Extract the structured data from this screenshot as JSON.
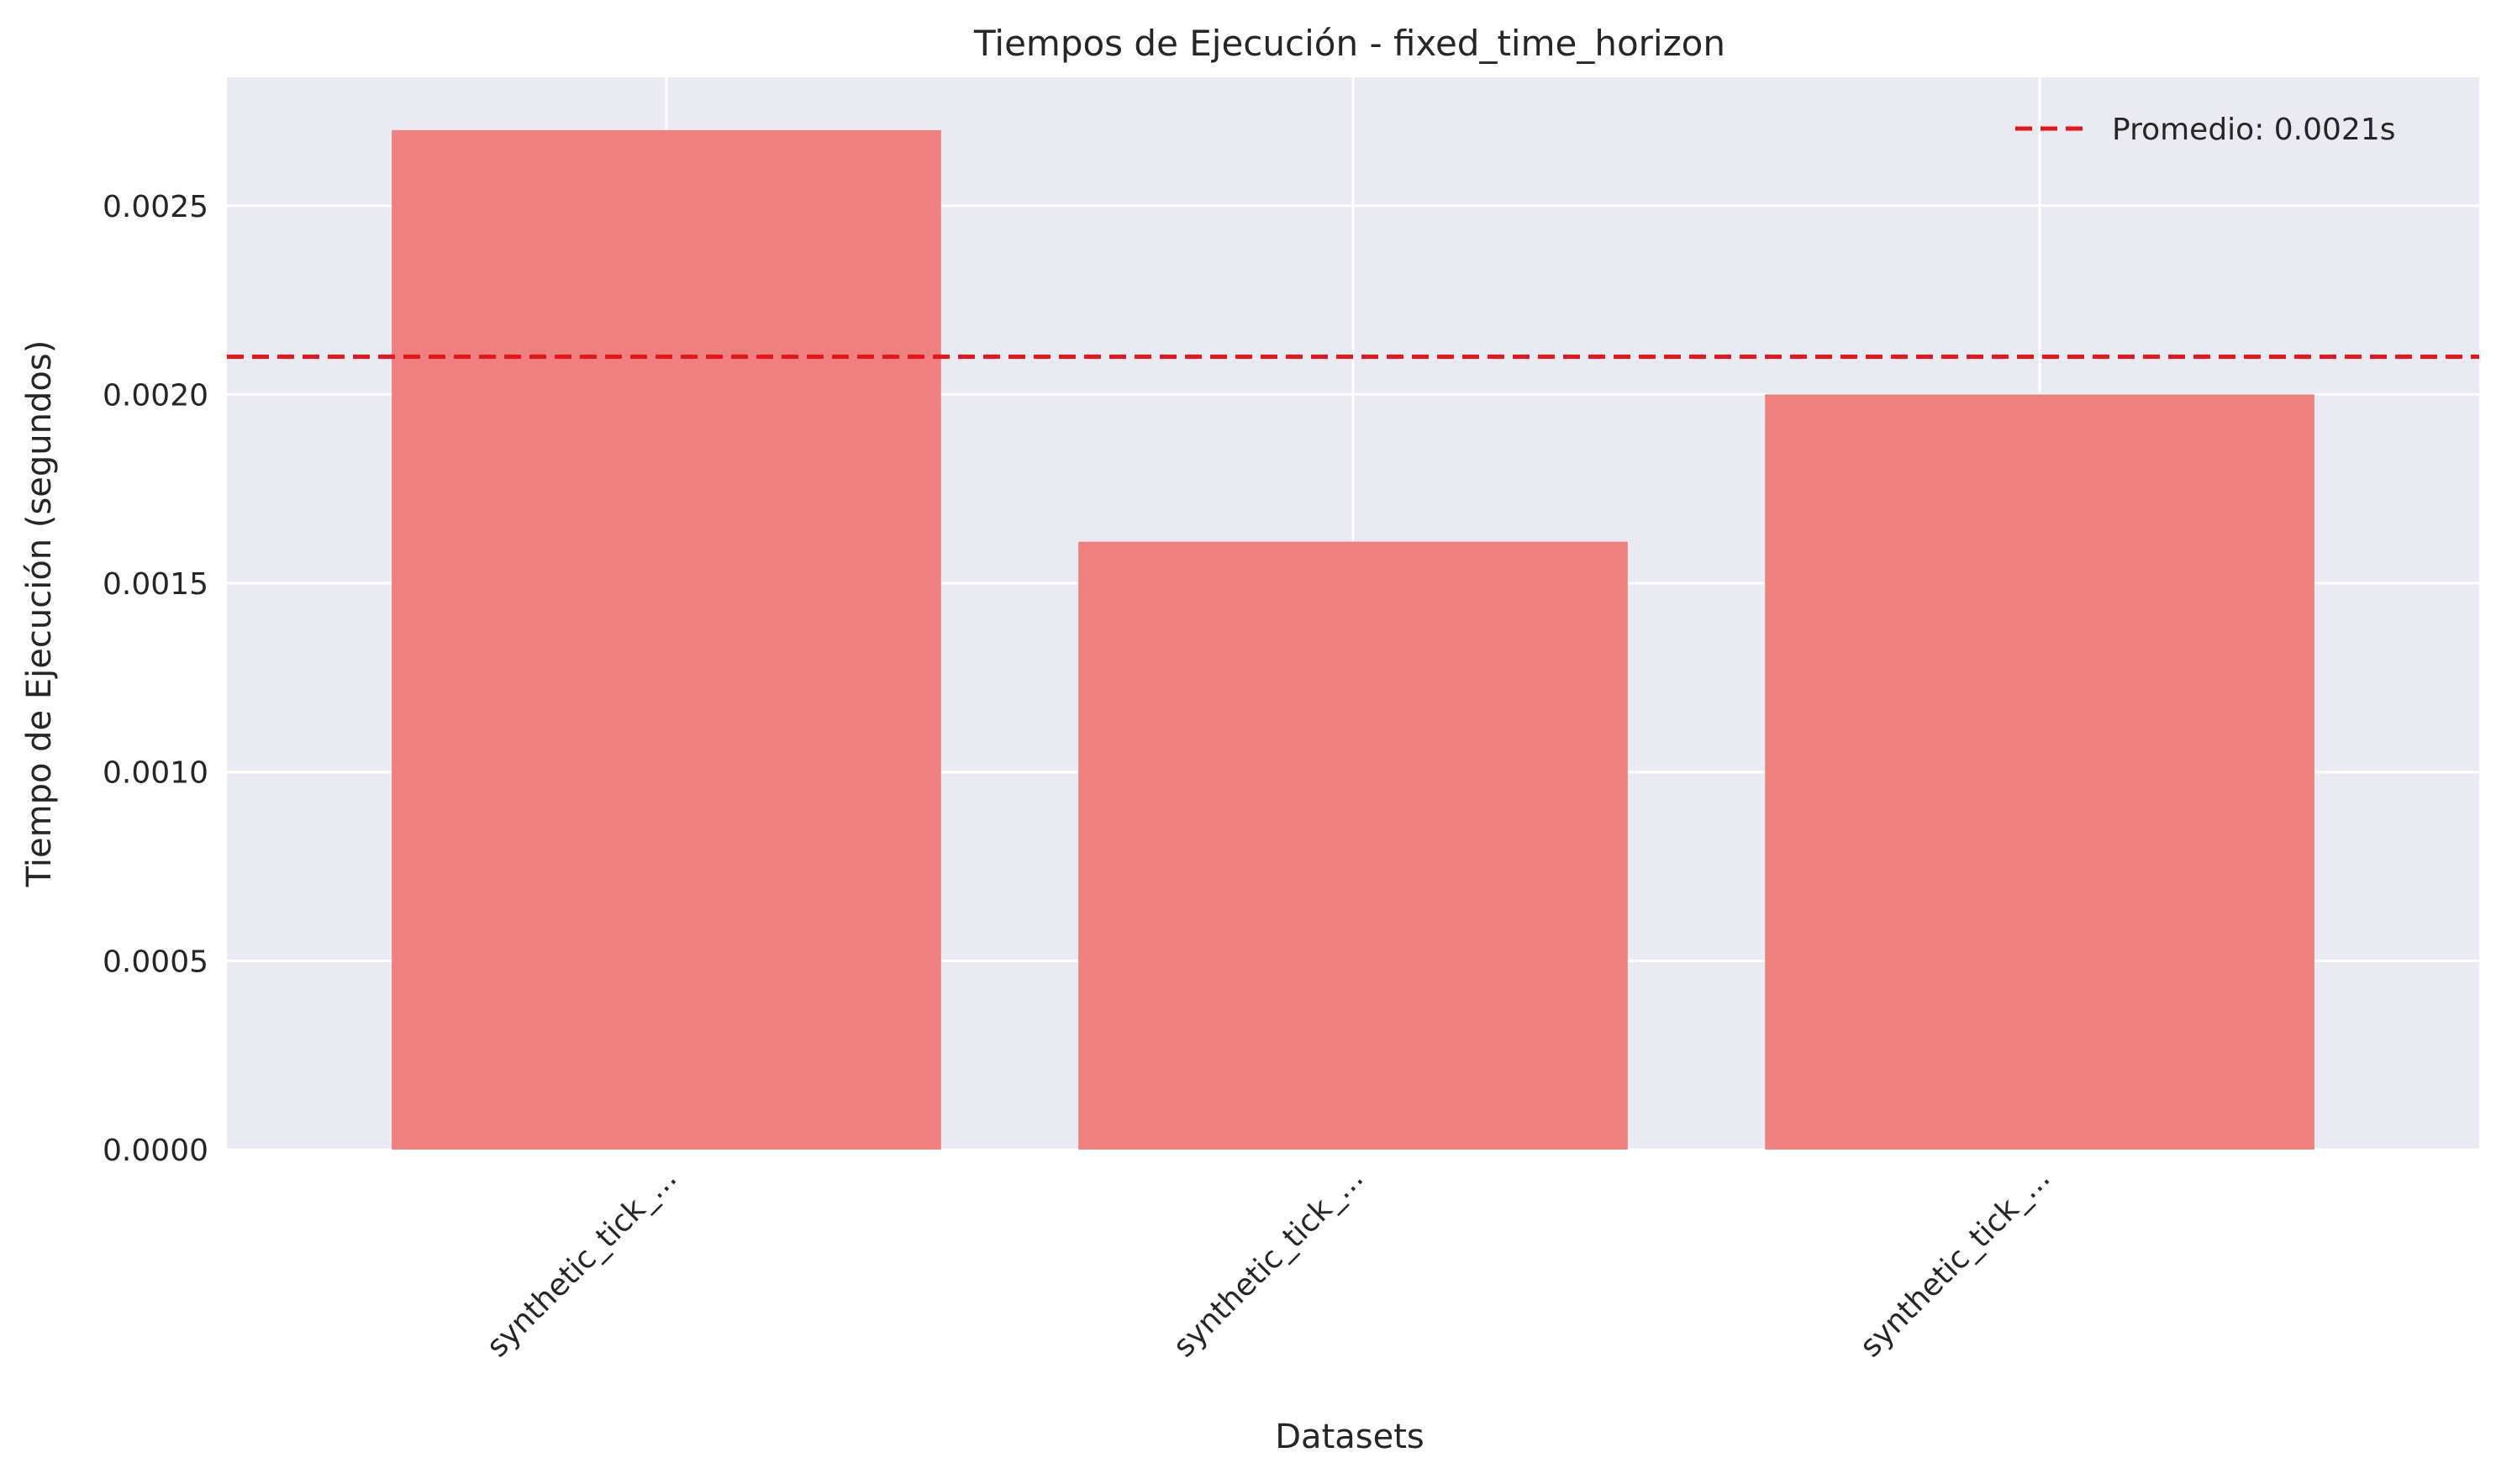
{
  "chart_data": {
    "type": "bar",
    "title": "Tiempos de Ejecución - fixed_time_horizon",
    "xlabel": "Datasets",
    "ylabel": "Tiempo de Ejecución (segundos)",
    "categories": [
      "synthetic_tick_...",
      "synthetic_tick_...",
      "synthetic_tick_..."
    ],
    "values": [
      0.0027,
      0.00161,
      0.002
    ],
    "ylim": [
      0,
      0.00284
    ],
    "yticks": [
      "0.0000",
      "0.0005",
      "0.0010",
      "0.0015",
      "0.0020",
      "0.0025"
    ],
    "ytick_values": [
      0,
      0.0005,
      0.001,
      0.0015,
      0.002,
      0.0025
    ],
    "average": {
      "value": 0.0021,
      "label": "Promedio: 0.0021s",
      "color": "#e8161a"
    },
    "bar_color": "#f08080",
    "background_color": "#eaeaf2",
    "grid": true,
    "legend_position": "top-right"
  }
}
